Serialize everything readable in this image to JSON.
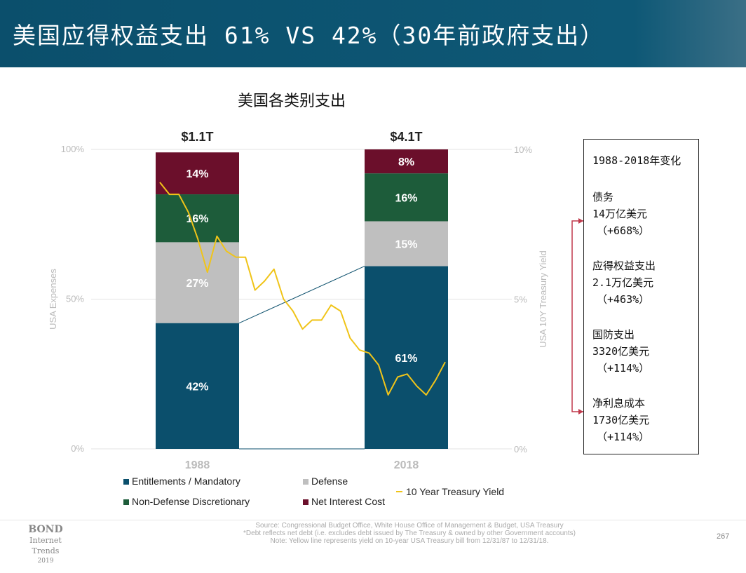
{
  "header": {
    "title": "美国应得权益支出 61% VS 42%（30年前政府支出）"
  },
  "chart_data": {
    "type": "bar",
    "title": "美国各类别支出",
    "categories": [
      "1988",
      "2018"
    ],
    "totals": [
      "$1.1T",
      "$4.1T"
    ],
    "series": [
      {
        "name": "Entitlements / Mandatory",
        "values": [
          42,
          61
        ],
        "labels": [
          "42%",
          "61%"
        ],
        "color": "#0b4f6c"
      },
      {
        "name": "Defense",
        "values": [
          27,
          15
        ],
        "labels": [
          "27%",
          "15%"
        ],
        "color": "#bfbfbf"
      },
      {
        "name": "Non-Defense Discretionary",
        "values": [
          16,
          16
        ],
        "labels": [
          "16%",
          "16%"
        ],
        "color": "#1d5c3a"
      },
      {
        "name": "Net Interest Cost",
        "values": [
          14,
          8
        ],
        "labels": [
          "14%",
          "8%"
        ],
        "color": "#6b0f2b"
      }
    ],
    "ylabel": "USA Expenses",
    "ylim": [
      0,
      100
    ],
    "yticks": [
      "0%",
      "50%",
      "100%"
    ],
    "y2label": "USA 10Y Treasury Yield",
    "y2lim": [
      0,
      10
    ],
    "y2ticks": [
      "0%",
      "5%",
      "10%"
    ],
    "line": {
      "name": "10 Year Treasury Yield",
      "color": "#f0c419",
      "x": [
        1988,
        1989,
        1990,
        1991,
        1992,
        1993,
        1994,
        1995,
        1996,
        1997,
        1998,
        1999,
        2000,
        2001,
        2002,
        2003,
        2004,
        2005,
        2006,
        2007,
        2008,
        2009,
        2010,
        2011,
        2012,
        2013,
        2014,
        2015,
        2016,
        2017,
        2018
      ],
      "y": [
        8.9,
        8.5,
        8.5,
        7.9,
        7.0,
        5.9,
        7.1,
        6.6,
        6.4,
        6.4,
        5.3,
        5.6,
        6.0,
        5.0,
        4.6,
        4.0,
        4.3,
        4.3,
        4.8,
        4.6,
        3.7,
        3.3,
        3.2,
        2.8,
        1.8,
        2.4,
        2.5,
        2.1,
        1.8,
        2.3,
        2.9
      ]
    },
    "legend": "bottom",
    "grid": true
  },
  "changes_box": {
    "title": "1988-2018年变化",
    "items": [
      {
        "name": "债务",
        "amount": "14万亿美元",
        "pct": "（+668%）"
      },
      {
        "name": "应得权益支出",
        "amount": "2.1万亿美元",
        "pct": "（+463%）"
      },
      {
        "name": "国防支出",
        "amount": "3320亿美元",
        "pct": "（+114%）"
      },
      {
        "name": "净利息成本",
        "amount": "1730亿美元",
        "pct": "（+114%）"
      }
    ],
    "bracket_color": "#c0394b"
  },
  "footer": {
    "logo_line1": "BOND",
    "logo_line2": "Internet Trends",
    "logo_line3": "2019",
    "source_lines": [
      "Source: Congressional Budget Office, White House Office of Management & Budget, USA Treasury",
      "*Debt reflects net debt (i.e. excludes debt issued by The Treasury & owned by other Government accounts)",
      "Note: Yellow line represents yield on 10-year USA Treasury bill from 12/31/87 to 12/31/18."
    ],
    "page_number": "267"
  }
}
